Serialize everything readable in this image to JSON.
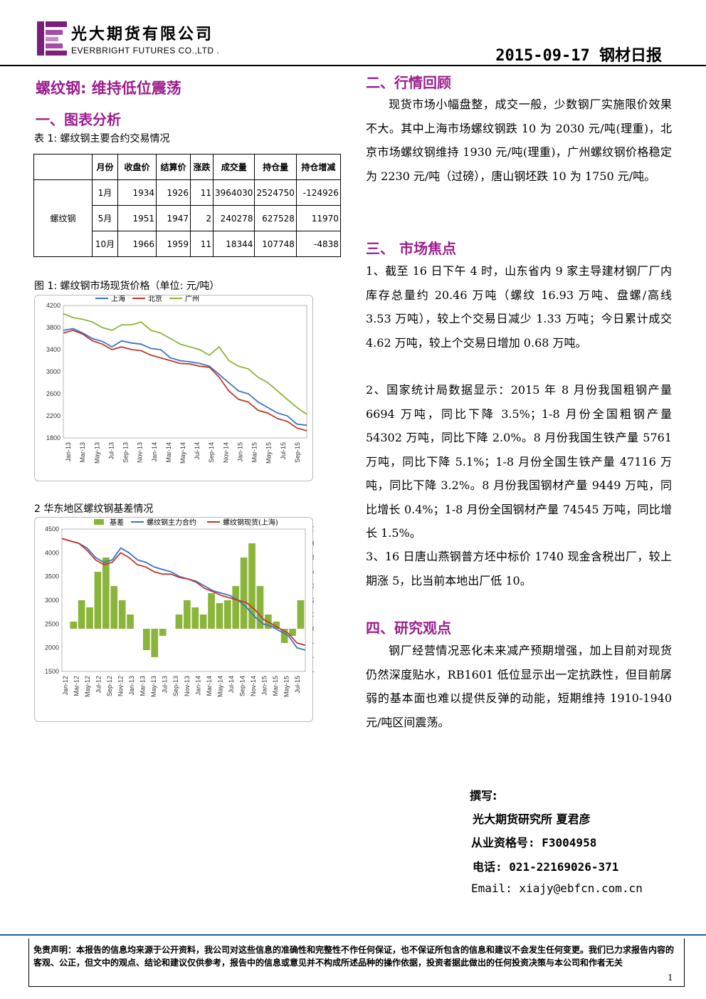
{
  "header": {
    "company_cn": "光大期货有限公司",
    "company_en": "EVERBRIGHT FUTURES CO.,LTD .",
    "report_title": "2015-09-17 钢材日报",
    "logo_color": "#7a1f7a"
  },
  "left": {
    "main_title": "螺纹钢: 维持低位震荡",
    "section1_title": "一、图表分析",
    "table1_caption": "表 1: 螺纹钢主要合约交易情况",
    "table1": {
      "headers": [
        "月份",
        "收盘价",
        "结算价",
        "涨跌",
        "成交量",
        "持仓量",
        "持仓增减"
      ],
      "row_label": "螺纹钢",
      "rows": [
        [
          "1月",
          "1934",
          "1926",
          "11",
          "3964030",
          "2524750",
          "-124926"
        ],
        [
          "5月",
          "1951",
          "1947",
          "2",
          "240278",
          "627528",
          "11970"
        ],
        [
          "10月",
          "1966",
          "1959",
          "11",
          "18344",
          "107748",
          "-4838"
        ]
      ]
    },
    "fig1_caption": "图 1: 螺纹钢市场现货价格（单位: 元/吨）",
    "fig2_caption": "2 华东地区螺纹钢基差情况"
  },
  "chart_data": [
    {
      "type": "line",
      "title": "",
      "series": [
        {
          "name": "上海",
          "color": "#3a73c4",
          "values": [
            3750,
            3780,
            3700,
            3600,
            3550,
            3450,
            3560,
            3520,
            3500,
            3420,
            3400,
            3250,
            3200,
            3180,
            3150,
            3100,
            2950,
            2800,
            2650,
            2600,
            2450,
            2350,
            2250,
            2200,
            2050,
            2030
          ]
        },
        {
          "name": "北京",
          "color": "#c0392b",
          "values": [
            3700,
            3750,
            3680,
            3560,
            3500,
            3400,
            3450,
            3400,
            3380,
            3300,
            3250,
            3200,
            3150,
            3140,
            3100,
            3080,
            2900,
            2650,
            2500,
            2450,
            2300,
            2250,
            2150,
            2100,
            1980,
            1930
          ]
        },
        {
          "name": "广州",
          "color": "#8bb43a",
          "values": [
            4050,
            3980,
            3950,
            3900,
            3800,
            3750,
            3850,
            3850,
            3900,
            3750,
            3700,
            3600,
            3500,
            3450,
            3400,
            3300,
            3450,
            3200,
            3100,
            3050,
            2900,
            2800,
            2650,
            2500,
            2350,
            2230
          ]
        }
      ],
      "x_ticks": [
        "Jan-13",
        "Mar-13",
        "May-13",
        "Jul-13",
        "Sep-13",
        "Nov-13",
        "Jan-14",
        "Mar-14",
        "May-14",
        "Jul-14",
        "Sep-14",
        "Nov-14",
        "Jan-15",
        "Mar-15",
        "May-15",
        "Jul-15",
        "Sep-15"
      ],
      "y_ticks": [
        1800,
        2200,
        2600,
        3000,
        3400,
        3800,
        4200
      ],
      "ylim": [
        1800,
        4200
      ],
      "legend": "top"
    },
    {
      "type": "line",
      "title": "",
      "series": [
        {
          "name": "基差",
          "type": "bar",
          "color": "#8bb43a",
          "axis": "right",
          "values": [
            0,
            50,
            200,
            150,
            400,
            500,
            300,
            200,
            100,
            0,
            -150,
            -200,
            -50,
            0,
            100,
            200,
            150,
            100,
            250,
            180,
            200,
            300,
            500,
            600,
            300,
            100,
            50,
            -100,
            -50,
            200
          ]
        },
        {
          "name": "螺纹钢主力合约",
          "color": "#3a73c4",
          "axis": "left",
          "values": [
            4300,
            4250,
            4200,
            4100,
            3900,
            3800,
            3850,
            4100,
            4000,
            3850,
            3800,
            3700,
            3650,
            3600,
            3500,
            3450,
            3400,
            3300,
            3200,
            3150,
            3100,
            3000,
            2850,
            2650,
            2500,
            2450,
            2350,
            2250,
            2000,
            1950
          ]
        },
        {
          "name": "螺纹钢现货(上海)",
          "color": "#c0392b",
          "axis": "left",
          "values": [
            4300,
            4250,
            4200,
            4050,
            3850,
            3750,
            3800,
            4000,
            3900,
            3750,
            3700,
            3600,
            3550,
            3550,
            3480,
            3450,
            3380,
            3250,
            3180,
            3100,
            3050,
            3000,
            2950,
            2800,
            2600,
            2500,
            2400,
            2300,
            2100,
            2050
          ]
        }
      ],
      "x_ticks": [
        "Jan-12",
        "Mar-12",
        "May-12",
        "Jul-12",
        "Sep-12",
        "Nov-12",
        "Jan-13",
        "Mar-13",
        "May-13",
        "Jul-13",
        "Sep-13",
        "Nov-13",
        "Jan-14",
        "Mar-14",
        "May-14",
        "Jul-14",
        "Sep-14",
        "Nov-14",
        "Jan-15",
        "Mar-15",
        "May-15",
        "Jul-15"
      ],
      "y_ticks": [
        1500,
        2000,
        2500,
        3000,
        3500,
        4000,
        4500
      ],
      "y2_ticks": [
        -300,
        -200,
        -100,
        0,
        100,
        200,
        300,
        400,
        500,
        600,
        700
      ],
      "ylim": [
        1500,
        4500
      ],
      "y2lim": [
        -300,
        700
      ],
      "legend": "top"
    }
  ],
  "right": {
    "section2_title": "二、行情回顾",
    "section2_text": "现货市场小幅盘整，成交一般，少数钢厂实施限价效果不大。其中上海市场螺纹钢跌 10 为 2030 元/吨(理重)，北京市场螺纹钢维持 1930 元/吨(理重)，广州螺纹钢价格稳定为 2230 元/吨（过磅），唐山钢坯跌 10 为 1750 元/吨。",
    "section3_title": "三、 市场焦点",
    "section3_p1": "1、截至 16 日下午 4 时，山东省内 9 家主导建材钢厂厂内库存总量约 20.46 万吨（螺纹 16.93 万吨、盘螺/高线 3.53 万吨），较上个交易日减少 1.33 万吨；今日累计成交 4.62 万吨，较上个交易日增加 0.68 万吨。",
    "section3_p2": "2、国家统计局数据显示：2015 年 8 月份我国粗钢产量 6694 万吨，同比下降 3.5%；1-8 月份全国粗钢产量 54302 万吨，同比下降 2.0%。8 月份我国生铁产量 5761 万吨，同比下降 5.1%；1-8 月份全国生铁产量 47116 万吨，同比下降 3.2%。8 月份我国钢材产量 9449 万吨，同比增长 0.4%；1-8 月份全国钢材产量 74545 万吨，同比增长 1.5%。",
    "section3_p3": "3、16 日唐山燕钢普方坯中标价 1740 现金含税出厂，较上期涨 5，比当前本地出厂低 10。",
    "section4_title": "四、研究观点",
    "section4_text": "钢厂经营情况恶化未来减产预期增强，加上目前对现货仍然深度贴水，RB1601 低位显示出一定抗跌性，但目前孱弱的基本面也难以提供反弹的动能，短期维持 1910-1940 元/吨区间震荡。"
  },
  "author": {
    "label": "撰写:",
    "org": "光大期货研究所 夏君彦",
    "cert": "从业资格号:  F3004958",
    "phone": "电话: 021-22169026-371",
    "email": "Email: xiajy@ebfcn.com.cn"
  },
  "footer": {
    "disclaimer": "免责声明：本报告的信息均来源于公开资料，我公司对这些信息的准确性和完整性不作任何保证，也不保证所包含的信息和建议不会发生任何变更。我们已力求报告内容的客观、公正，但文中的观点、结论和建议仅供参考，报告中的信息或意见并不构成所述品种的操作依据，投资者据此做出的任何投资决策与本公司和作者无关",
    "page_number": "1"
  }
}
